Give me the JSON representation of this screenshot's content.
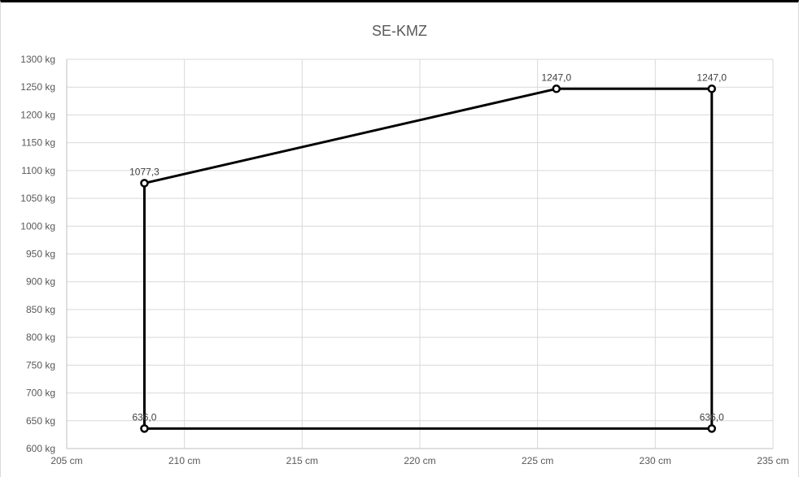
{
  "chart_data": {
    "type": "scatter",
    "title": "SE-KMZ",
    "xlabel": "",
    "ylabel": "",
    "xlim": [
      205,
      235
    ],
    "ylim": [
      600,
      1300
    ],
    "x_ticks": [
      205,
      210,
      215,
      220,
      225,
      230,
      235
    ],
    "y_ticks": [
      600,
      650,
      700,
      750,
      800,
      850,
      900,
      950,
      1000,
      1050,
      1100,
      1150,
      1200,
      1250,
      1300
    ],
    "x_tick_labels": [
      "205 cm",
      "210 cm",
      "215 cm",
      "220 cm",
      "225 cm",
      "230 cm",
      "235 cm"
    ],
    "y_tick_labels": [
      "600 kg",
      "650 kg",
      "700 kg",
      "750 kg",
      "800 kg",
      "850 kg",
      "900 kg",
      "950 kg",
      "1000 kg",
      "1050 kg",
      "1100 kg",
      "1150 kg",
      "1200 kg",
      "1250 kg",
      "1300 kg"
    ],
    "grid": true,
    "legend": "none",
    "series": [
      {
        "color": "#000000",
        "closed": true,
        "points": [
          {
            "x": 208.3,
            "y": 636.0,
            "label": "636,0"
          },
          {
            "x": 208.3,
            "y": 1077.3,
            "label": "1077,3"
          },
          {
            "x": 225.8,
            "y": 1247.0,
            "label": "1247,0"
          },
          {
            "x": 232.4,
            "y": 1247.0,
            "label": "1247,0"
          },
          {
            "x": 232.4,
            "y": 636.0,
            "label": "636,0"
          }
        ]
      }
    ]
  }
}
